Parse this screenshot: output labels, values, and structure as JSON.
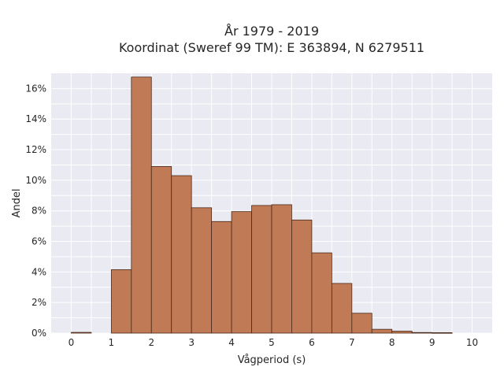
{
  "chart_data": {
    "type": "bar",
    "title_line1": "År 1979 - 2019",
    "title_line2": "Koordinat (Sweref 99 TM): E 363894, N 6279511",
    "xlabel": "Vågperiod (s)",
    "ylabel": "Andel",
    "x_ticks": [
      "0",
      "1",
      "2",
      "3",
      "4",
      "5",
      "6",
      "7",
      "8",
      "9",
      "10"
    ],
    "y_ticks": [
      "0%",
      "2%",
      "4%",
      "6%",
      "8%",
      "10%",
      "12%",
      "14%",
      "16%"
    ],
    "xlim": [
      -0.5,
      10.5
    ],
    "ylim": [
      0,
      0.17
    ],
    "bin_width": 0.5,
    "bins": [
      {
        "x0": 0.0,
        "value": 0.0005
      },
      {
        "x0": 0.5,
        "value": 0.0
      },
      {
        "x0": 1.0,
        "value": 0.0415
      },
      {
        "x0": 1.5,
        "value": 0.1675
      },
      {
        "x0": 2.0,
        "value": 0.109
      },
      {
        "x0": 2.5,
        "value": 0.103
      },
      {
        "x0": 3.0,
        "value": 0.082
      },
      {
        "x0": 3.5,
        "value": 0.073
      },
      {
        "x0": 4.0,
        "value": 0.0795
      },
      {
        "x0": 4.5,
        "value": 0.0835
      },
      {
        "x0": 5.0,
        "value": 0.084
      },
      {
        "x0": 5.5,
        "value": 0.074
      },
      {
        "x0": 6.0,
        "value": 0.0525
      },
      {
        "x0": 6.5,
        "value": 0.0325
      },
      {
        "x0": 7.0,
        "value": 0.013
      },
      {
        "x0": 7.5,
        "value": 0.0025
      },
      {
        "x0": 8.0,
        "value": 0.0013
      },
      {
        "x0": 8.5,
        "value": 0.0004
      },
      {
        "x0": 9.0,
        "value": 0.0003
      }
    ],
    "bar_color": "#c07a55",
    "edge_color": "#4a2a1a",
    "background_color": "#eaeaf2",
    "grid": true
  }
}
